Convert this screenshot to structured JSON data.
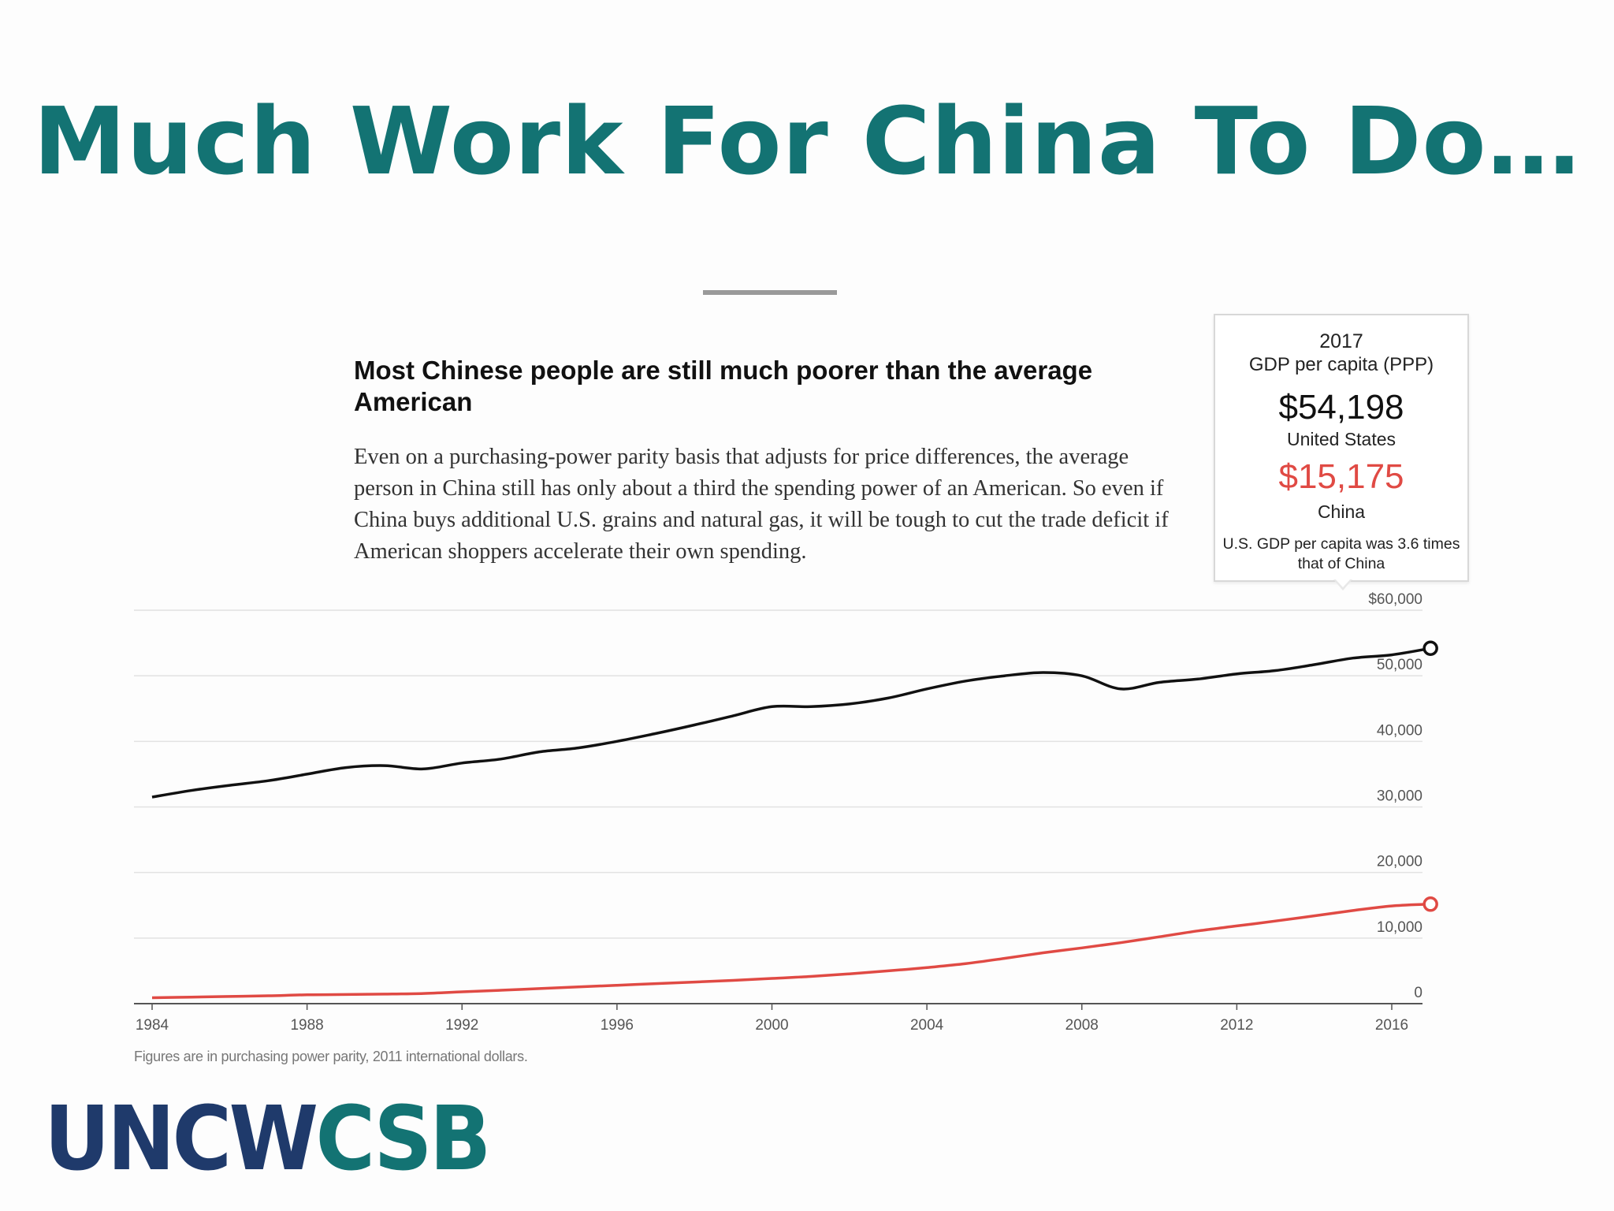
{
  "slide": {
    "title": "Much Work For China To Do…"
  },
  "chart_heading": "Most Chinese people are still much poorer than the average American",
  "chart_body": "Even on a purchasing-power parity basis that adjusts for price differences, the average person in China still has only about a third the spending power of an American. So even if China buys additional U.S. grains and natural gas, it will be tough to cut the trade deficit if American shoppers accelerate their own spending.",
  "tooltip": {
    "year": "2017",
    "metric": "GDP per capita (PPP)",
    "us_value": "$54,198",
    "us_label": "United States",
    "china_value": "$15,175",
    "china_label": "China",
    "note": "U.S. GDP per capita was 3.6 times that of China"
  },
  "footnote": "Figures are in purchasing power parity, 2011 international dollars.",
  "logo": {
    "part1": "UNCW",
    "part2": "CSB"
  },
  "colors": {
    "title": "#137373",
    "us_series": "#111111",
    "china_series": "#e04a44",
    "logo_navy": "#1f3a6b",
    "logo_teal": "#137373"
  },
  "chart_data": {
    "type": "line",
    "ylim": [
      0,
      60000
    ],
    "xlim": [
      1984,
      2017
    ],
    "yticks": [
      {
        "value": 60000,
        "label": "$60,000"
      },
      {
        "value": 50000,
        "label": "50,000"
      },
      {
        "value": 40000,
        "label": "40,000"
      },
      {
        "value": 30000,
        "label": "30,000"
      },
      {
        "value": 20000,
        "label": "20,000"
      },
      {
        "value": 10000,
        "label": "10,000"
      },
      {
        "value": 0,
        "label": "0"
      }
    ],
    "xticks": [
      {
        "value": 1984,
        "label": "1984"
      },
      {
        "value": 1988,
        "label": "1988"
      },
      {
        "value": 1992,
        "label": "1992"
      },
      {
        "value": 1996,
        "label": "1996"
      },
      {
        "value": 2000,
        "label": "2000"
      },
      {
        "value": 2004,
        "label": "2004"
      },
      {
        "value": 2008,
        "label": "2008"
      },
      {
        "value": 2012,
        "label": "2012"
      },
      {
        "value": 2016,
        "label": "2016"
      }
    ],
    "grid": true,
    "series": [
      {
        "key": "us",
        "x": [
          1984,
          1985,
          1986,
          1987,
          1988,
          1989,
          1990,
          1991,
          1992,
          1993,
          1994,
          1995,
          1996,
          1997,
          1998,
          1999,
          2000,
          2001,
          2002,
          2003,
          2004,
          2005,
          2006,
          2007,
          2008,
          2009,
          2010,
          2011,
          2012,
          2013,
          2014,
          2015,
          2016,
          2017
        ],
        "y": [
          31500,
          32500,
          33300,
          34000,
          35000,
          36000,
          36300,
          35800,
          36700,
          37300,
          38400,
          39000,
          40000,
          41200,
          42500,
          43900,
          45300,
          45300,
          45700,
          46600,
          48000,
          49200,
          50000,
          50500,
          50000,
          48000,
          49000,
          49500,
          50300,
          50800,
          51700,
          52700,
          53200,
          54198
        ]
      },
      {
        "key": "china",
        "x": [
          1984,
          1985,
          1986,
          1987,
          1988,
          1989,
          1990,
          1991,
          1992,
          1993,
          1994,
          1995,
          1996,
          1997,
          1998,
          1999,
          2000,
          2001,
          2002,
          2003,
          2004,
          2005,
          2006,
          2007,
          2008,
          2009,
          2010,
          2011,
          2012,
          2013,
          2014,
          2015,
          2016,
          2017
        ],
        "y": [
          900,
          1000,
          1100,
          1200,
          1350,
          1400,
          1450,
          1550,
          1800,
          2050,
          2300,
          2550,
          2800,
          3050,
          3300,
          3550,
          3850,
          4150,
          4550,
          5000,
          5500,
          6100,
          6900,
          7750,
          8500,
          9300,
          10200,
          11100,
          11850,
          12600,
          13400,
          14200,
          14900,
          15175
        ]
      }
    ]
  }
}
